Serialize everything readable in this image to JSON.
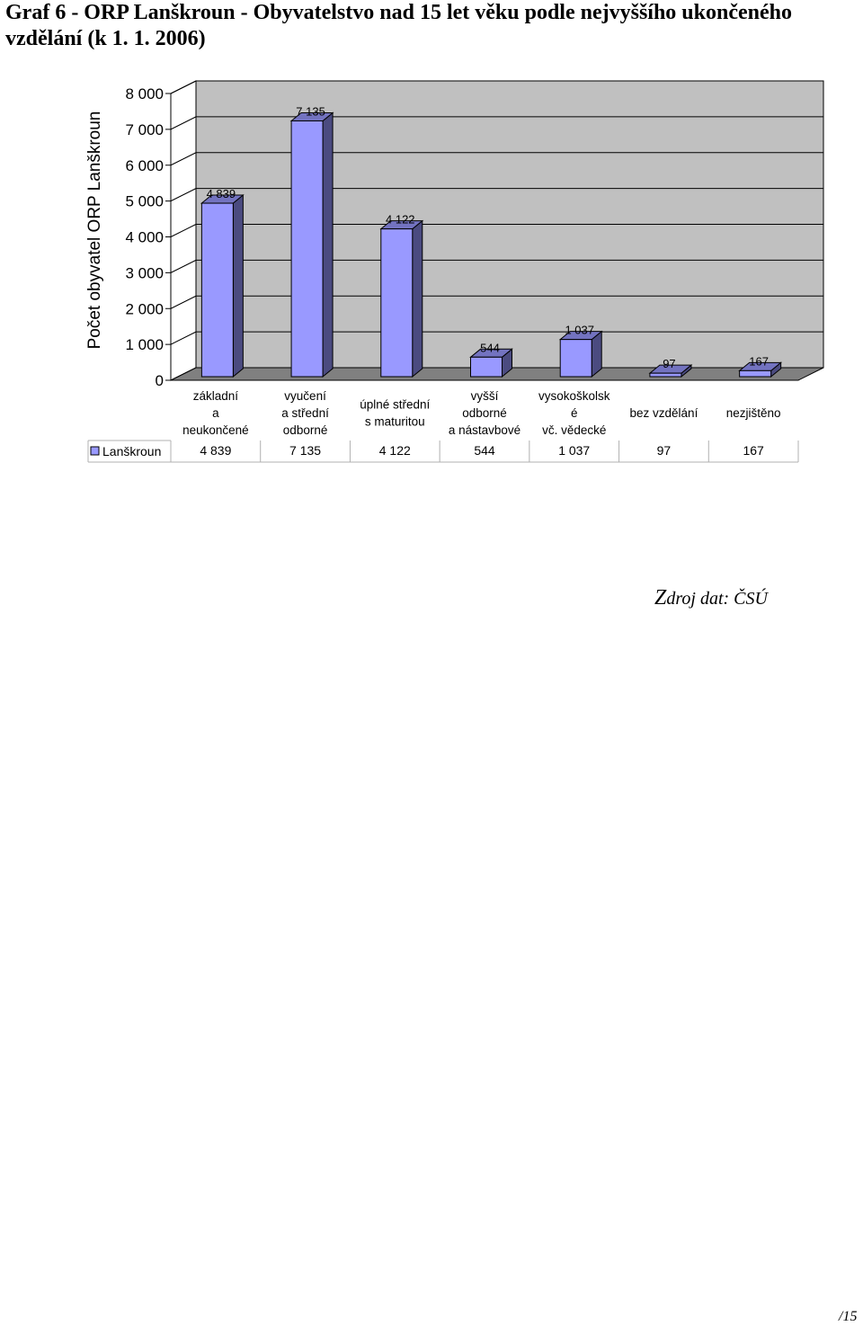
{
  "title": "Graf 6 - ORP Lanškroun - Obyvatelstvo nad 15 let věku podle nejvyššího ukončeného vzdělání (k 1. 1. 2006)",
  "source_first": "Z",
  "source_rest": "droj dat: ČSÚ",
  "page_number_prefix": "/",
  "page_number": "15",
  "colors": {
    "bar_front": "#9999ff",
    "bar_side": "#4b4b80",
    "bar_top": "#7373c0",
    "back_wall": "#c0c0c0",
    "floor": "#808080",
    "outline": "#000000"
  },
  "chart_data": {
    "type": "bar",
    "title": "",
    "xlabel": "",
    "ylabel": "Počet obyvatel ORP Lanškroun",
    "ylim": [
      0,
      8000
    ],
    "yticks": [
      "0",
      "1 000",
      "2 000",
      "3 000",
      "4 000",
      "5 000",
      "6 000",
      "7 000",
      "8 000"
    ],
    "grid": true,
    "three_d": true,
    "categories": [
      [
        "základní",
        "a",
        "neukončené"
      ],
      [
        "vyučení",
        "a střední",
        "odborné"
      ],
      [
        "úplné střední",
        "s maturitou"
      ],
      [
        "vyšší",
        "odborné",
        "a nástavbové"
      ],
      [
        "vysokoškolsk",
        "é",
        "vč. vědecké"
      ],
      [
        "bez vzdělání"
      ],
      [
        "nezjištěno"
      ]
    ],
    "series": [
      {
        "name": "Lanškroun",
        "values": [
          4839,
          7135,
          4122,
          544,
          1037,
          97,
          167
        ],
        "value_labels": [
          "4 839",
          "7 135",
          "4 122",
          "544",
          "1 037",
          "97",
          "167"
        ]
      }
    ],
    "legend": "data table below chart"
  }
}
